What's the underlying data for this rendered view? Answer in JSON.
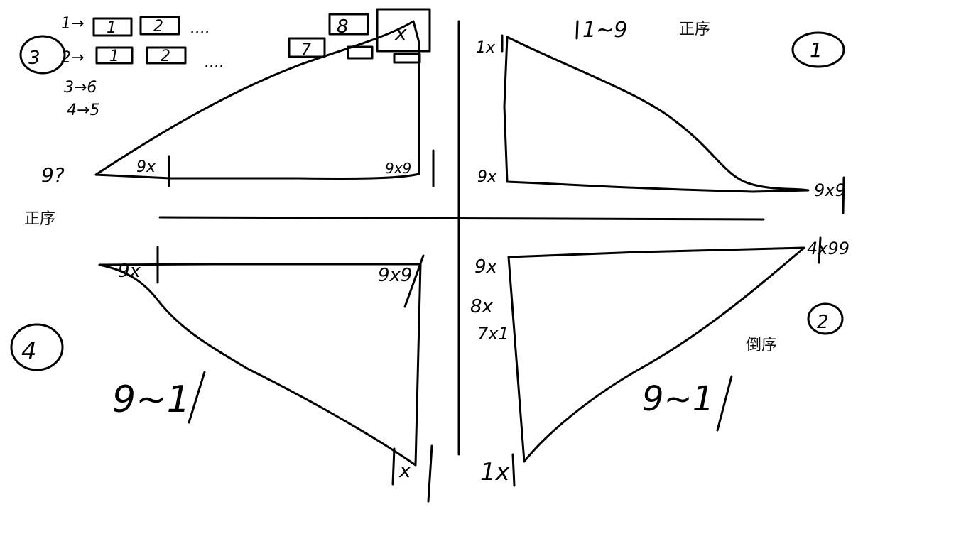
{
  "typed_labels": {
    "q1_order": "正序",
    "left_order": "正序",
    "q2_order": "倒序"
  },
  "quadrant_1": {
    "number": "1",
    "range": "1~9",
    "top_label": "1x",
    "bottom_left_label": "9x",
    "bottom_right_label": "9x9"
  },
  "quadrant_2": {
    "number": "2",
    "range": "9~1",
    "top_left_label": "9x",
    "mid_label_a": "8x",
    "mid_label_b": "7x1",
    "top_right_label": "4x99",
    "bottom_label": "1x"
  },
  "quadrant_3": {
    "number": "3",
    "rows": [
      {
        "label": "1→",
        "boxes": [
          "1",
          "2"
        ],
        "dots": "...."
      },
      {
        "label": "2→",
        "boxes": [
          "1",
          "2"
        ],
        "dots": "...."
      }
    ],
    "lines": [
      "3→6",
      "4→5"
    ],
    "left_label": "9?",
    "base_left_label": "9x",
    "base_right_label": "9x9",
    "top_boxes": [
      "8",
      "7"
    ],
    "corner_box": "x"
  },
  "quadrant_4": {
    "number": "4",
    "range": "9~1",
    "top_left_label": "9x",
    "top_right_label": "9x9",
    "bottom_label": "x"
  },
  "colors": {
    "ink": "#000000",
    "background": "#ffffff"
  }
}
